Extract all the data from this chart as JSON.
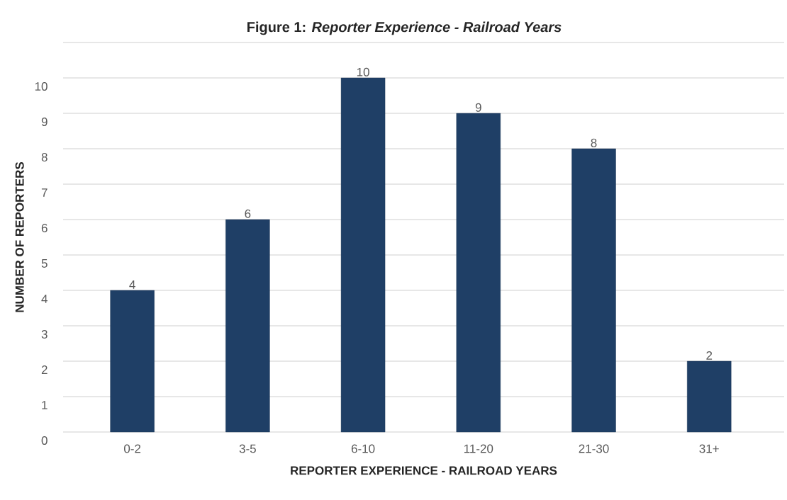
{
  "chart_data": {
    "type": "bar",
    "title": "Figure 1: *Reporter Experience - Railroad Years*",
    "xlabel": "REPORTER EXPERIENCE - RAILROAD YEARS",
    "ylabel": "NUMBER OF REPORTERS",
    "categories": [
      "0-2",
      "3-5",
      "6-10",
      "11-20",
      "21-30",
      "31+"
    ],
    "values": [
      4,
      6,
      10,
      9,
      8,
      2
    ],
    "color": "#1f3f66",
    "ylim": [
      0,
      11
    ],
    "yticks": [
      0,
      1,
      2,
      3,
      4,
      5,
      6,
      7,
      8,
      9,
      10,
      {
        "value": 11,
        "label": null
      }
    ],
    "grid": "y",
    "data_labels": true
  }
}
